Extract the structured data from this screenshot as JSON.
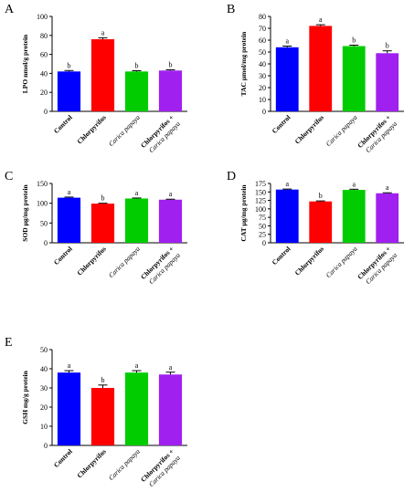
{
  "chart_data": [
    {
      "type": "bar",
      "panel": "A",
      "ylabel": "LPO nmol/g protein",
      "ylim": [
        0,
        100
      ],
      "yticks": [
        0,
        20,
        40,
        60,
        80,
        100
      ],
      "categories": [
        "Control",
        "Chlorpyrifos",
        "Carica papaya",
        "Chlorpyrifos + Carica papaya"
      ],
      "values": [
        42,
        76,
        42,
        43
      ],
      "errors": [
        1.0,
        1.5,
        0.8,
        0.8
      ],
      "significance": [
        "b",
        "a",
        "b",
        "b"
      ],
      "colors": [
        "#0000ff",
        "#ff0000",
        "#00cc00",
        "#a020f0"
      ]
    },
    {
      "type": "bar",
      "panel": "B",
      "ylabel": "TAC μmol/mg protein",
      "ylim": [
        0,
        80
      ],
      "yticks": [
        0,
        10,
        20,
        30,
        40,
        50,
        60,
        70,
        80
      ],
      "categories": [
        "Control",
        "Chlorpyrifos",
        "Carica papaya",
        "Chlorpyrifos + Carica papaya"
      ],
      "values": [
        54,
        72,
        55,
        49
      ],
      "errors": [
        1.0,
        1.0,
        0.8,
        2.0
      ],
      "significance": [
        "a",
        "a",
        "b",
        "b"
      ],
      "colors": [
        "#0000ff",
        "#ff0000",
        "#00cc00",
        "#a020f0"
      ]
    },
    {
      "type": "bar",
      "panel": "C",
      "ylabel": "SOD μg/mg protein",
      "ylim": [
        0,
        150
      ],
      "yticks": [
        0,
        50,
        100,
        150
      ],
      "categories": [
        "Control",
        "Chlorpyrifos",
        "Carica papaya",
        "Chlorpyrifos + Carica papaya"
      ],
      "values": [
        114,
        99,
        112,
        109
      ],
      "errors": [
        1.5,
        1.0,
        1.2,
        1.2
      ],
      "significance": [
        "a",
        "b",
        "a",
        "a"
      ],
      "colors": [
        "#0000ff",
        "#ff0000",
        "#00cc00",
        "#a020f0"
      ]
    },
    {
      "type": "bar",
      "panel": "D",
      "ylabel": "CAT μg/mg protein",
      "ylim": [
        0,
        175
      ],
      "yticks": [
        0,
        25,
        50,
        75,
        100,
        125,
        150,
        175
      ],
      "categories": [
        "Control",
        "Chlorpyrifos",
        "Carica papaya",
        "Chlorpyrifos + Carica papaya"
      ],
      "values": [
        157,
        122,
        156,
        146
      ],
      "errors": [
        1.5,
        1.5,
        2.0,
        1.5
      ],
      "significance": [
        "a",
        "b",
        "a",
        "a"
      ],
      "colors": [
        "#0000ff",
        "#ff0000",
        "#00cc00",
        "#a020f0"
      ]
    },
    {
      "type": "bar",
      "panel": "E",
      "ylabel": "GSH mg/g protein",
      "ylim": [
        0,
        50
      ],
      "yticks": [
        0,
        10,
        20,
        30,
        40,
        50
      ],
      "categories": [
        "Control",
        "Chlorpyrifos",
        "Carica papaya",
        "Chlorpyrifos + Carica papaya"
      ],
      "values": [
        38,
        30,
        38,
        37
      ],
      "errors": [
        1.0,
        1.5,
        1.0,
        1.2
      ],
      "significance": [
        "a",
        "b",
        "a",
        "a"
      ],
      "colors": [
        "#0000ff",
        "#ff0000",
        "#00cc00",
        "#a020f0"
      ]
    }
  ]
}
